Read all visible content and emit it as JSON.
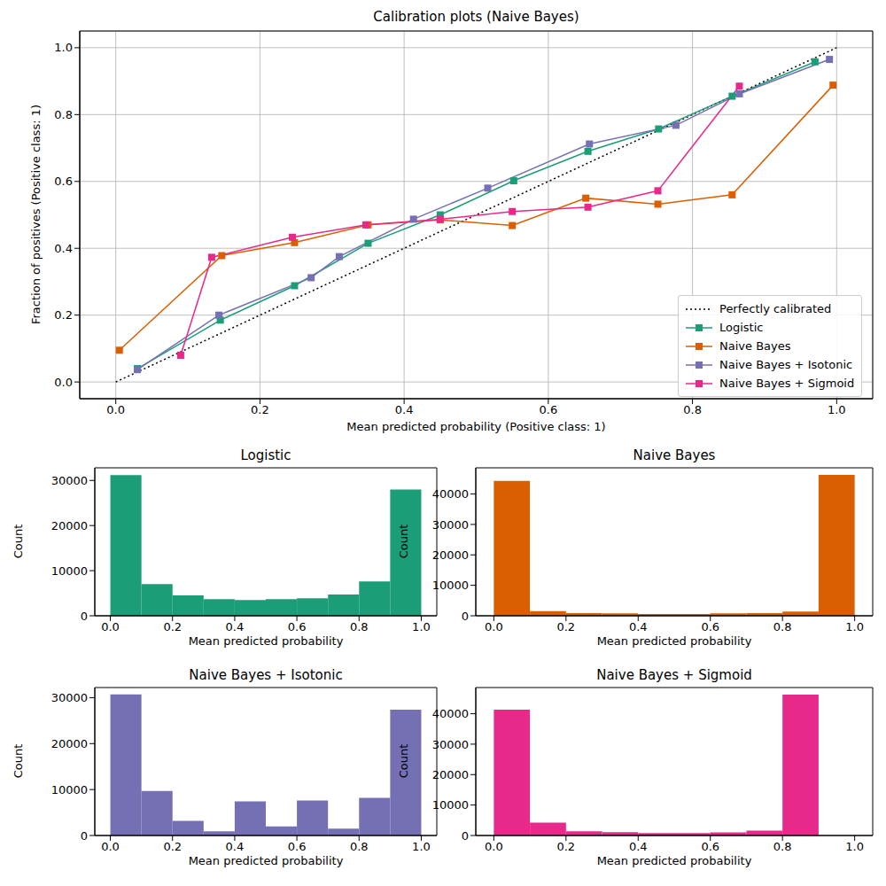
{
  "chart_data": [
    {
      "type": "line",
      "title": "Calibration plots (Naive Bayes)",
      "x_label": "Mean predicted probability (Positive class: 1)",
      "y_label": "Fraction of positives (Positive class: 1)",
      "xlim": [
        -0.05,
        1.05
      ],
      "ylim": [
        -0.05,
        1.05
      ],
      "xticks": [
        {
          "value": 0,
          "label": "0.0"
        },
        0.2,
        0.4,
        0.6,
        0.8,
        {
          "value": 1,
          "label": "1.0"
        }
      ],
      "yticks": [
        {
          "value": 0,
          "label": "0.0"
        },
        0.2,
        0.4,
        0.6,
        0.8,
        {
          "value": 1,
          "label": "1.0"
        }
      ],
      "grid": true,
      "legend": "lower right",
      "series": [
        {
          "name": "Perfectly calibrated",
          "color": "#000000",
          "marker": "none",
          "line_style": "dotted",
          "x": [
            0,
            1
          ],
          "values": [
            0,
            1
          ]
        },
        {
          "name": "Logistic",
          "color": "#1b9e77",
          "marker": "square",
          "line_style": "solid",
          "x": [
            0.03,
            0.145,
            0.248,
            0.35,
            0.45,
            0.552,
            0.655,
            0.753,
            0.855,
            0.97
          ],
          "values": [
            0.04,
            0.185,
            0.288,
            0.415,
            0.5,
            0.602,
            0.69,
            0.757,
            0.855,
            0.958
          ]
        },
        {
          "name": "Naive Bayes",
          "color": "#d95f02",
          "marker": "square",
          "line_style": "solid",
          "x": [
            0.005,
            0.147,
            0.248,
            0.35,
            0.45,
            0.55,
            0.652,
            0.752,
            0.855,
            0.995
          ],
          "values": [
            0.095,
            0.378,
            0.417,
            0.47,
            0.485,
            0.468,
            0.55,
            0.532,
            0.56,
            0.888
          ]
        },
        {
          "name": "Naive Bayes + Isotonic",
          "color": "#7570b3",
          "marker": "square",
          "line_style": "solid",
          "x": [
            0.03,
            0.143,
            0.271,
            0.31,
            0.413,
            0.516,
            0.657,
            0.777,
            0.865,
            0.99
          ],
          "values": [
            0.037,
            0.2,
            0.312,
            0.375,
            0.487,
            0.58,
            0.712,
            0.768,
            0.862,
            0.965
          ]
        },
        {
          "name": "Naive Bayes + Sigmoid",
          "color": "#e7298a",
          "marker": "square",
          "line_style": "solid",
          "x": [
            0.09,
            0.133,
            0.245,
            0.347,
            0.45,
            0.55,
            0.655,
            0.752,
            0.865
          ],
          "values": [
            0.08,
            0.373,
            0.433,
            0.47,
            0.487,
            0.51,
            0.523,
            0.572,
            0.885
          ]
        }
      ]
    },
    {
      "type": "histogram",
      "title": "Logistic",
      "x_label": "Mean predicted probability",
      "y_label": "Count",
      "color": "#1b9e77",
      "grid": false,
      "bins": [
        0,
        0.1,
        0.2,
        0.3,
        0.4,
        0.5,
        0.6,
        0.7,
        0.8,
        0.9,
        1
      ],
      "counts": [
        31200,
        7000,
        4500,
        3700,
        3500,
        3700,
        3900,
        4700,
        7600,
        28000
      ],
      "xlim": [
        -0.05,
        1.05
      ],
      "ylim": [
        0,
        32800
      ],
      "xticks": [
        {
          "value": 0,
          "label": "0.0"
        },
        0.2,
        0.4,
        0.6,
        0.8,
        {
          "value": 1,
          "label": "1.0"
        }
      ],
      "yticks": [
        0,
        10000,
        20000,
        30000
      ]
    },
    {
      "type": "histogram",
      "title": "Naive Bayes",
      "x_label": "Mean predicted probability",
      "y_label": "Count",
      "color": "#d95f02",
      "grid": false,
      "bins": [
        0,
        0.1,
        0.2,
        0.3,
        0.4,
        0.5,
        0.6,
        0.7,
        0.8,
        0.9,
        1
      ],
      "counts": [
        44300,
        1500,
        900,
        800,
        600,
        600,
        800,
        900,
        1400,
        46300
      ],
      "xlim": [
        -0.05,
        1.05
      ],
      "ylim": [
        0,
        48600
      ],
      "xticks": [
        {
          "value": 0,
          "label": "0.0"
        },
        0.2,
        0.4,
        0.6,
        0.8,
        {
          "value": 1,
          "label": "1.0"
        }
      ],
      "yticks": [
        0,
        10000,
        20000,
        30000,
        40000
      ]
    },
    {
      "type": "histogram",
      "title": "Naive Bayes + Isotonic",
      "x_label": "Mean predicted probability",
      "y_label": "Count",
      "color": "#7570b3",
      "grid": false,
      "bins": [
        0,
        0.1,
        0.2,
        0.3,
        0.4,
        0.5,
        0.6,
        0.7,
        0.8,
        0.9,
        1
      ],
      "counts": [
        30700,
        9700,
        3200,
        900,
        7400,
        2000,
        7600,
        1500,
        8200,
        27400
      ],
      "xlim": [
        -0.05,
        1.05
      ],
      "ylim": [
        0,
        32200
      ],
      "xticks": [
        {
          "value": 0,
          "label": "0.0"
        },
        0.2,
        0.4,
        0.6,
        0.8,
        {
          "value": 1,
          "label": "1.0"
        }
      ],
      "yticks": [
        0,
        10000,
        20000,
        30000
      ]
    },
    {
      "type": "histogram",
      "title": "Naive Bayes + Sigmoid",
      "x_label": "Mean predicted probability",
      "y_label": "Count",
      "color": "#e7298a",
      "grid": false,
      "bins": [
        0,
        0.1,
        0.2,
        0.3,
        0.4,
        0.5,
        0.6,
        0.7,
        0.8,
        0.9,
        1
      ],
      "counts": [
        41300,
        4200,
        1400,
        1100,
        800,
        800,
        1000,
        1600,
        46300,
        0
      ],
      "xlim": [
        -0.05,
        1.05
      ],
      "ylim": [
        0,
        48600
      ],
      "xticks": [
        {
          "value": 0,
          "label": "0.0"
        },
        0.2,
        0.4,
        0.6,
        0.8,
        {
          "value": 1,
          "label": "1.0"
        }
      ],
      "yticks": [
        0,
        10000,
        20000,
        30000,
        40000
      ]
    }
  ]
}
